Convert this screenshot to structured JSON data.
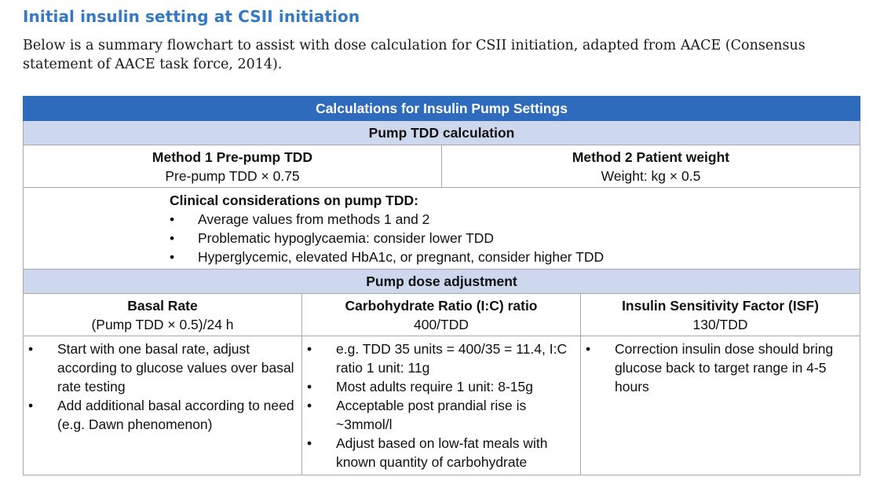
{
  "heading": "Initial insulin setting at CSII initiation",
  "intro": "Below is a summary flowchart to assist with dose calculation for CSII initiation, adapted from AACE (Consensus statement of AACE task force, 2014).",
  "table": {
    "title": "Calculations for Insulin Pump Settings",
    "tdd_header": "Pump TDD calculation",
    "method1": {
      "label": "Method 1 Pre-pump TDD",
      "formula": "Pre-pump TDD × 0.75"
    },
    "method2": {
      "label": "Method 2 Patient weight",
      "formula": "Weight: kg × 0.5"
    },
    "clinical": {
      "label": "Clinical considerations on pump TDD:",
      "items": [
        "Average values from methods 1 and 2",
        "Problematic hypoglycaemia: consider lower TDD",
        "Hyperglycemic, elevated HbA1c, or pregnant, consider higher TDD"
      ]
    },
    "dose_header": "Pump dose adjustment",
    "basal": {
      "label": "Basal Rate",
      "formula": "(Pump TDD × 0.5)/24 h",
      "items": [
        "Start with one basal rate, adjust according to glucose values over basal rate testing",
        "Add additional basal according to need (e.g. Dawn phenomenon)"
      ]
    },
    "carb": {
      "label": "Carbohydrate Ratio (I:C) ratio",
      "formula": "400/TDD",
      "items": [
        "e.g. TDD 35 units = 400/35 = 11.4, I:C ratio 1 unit: 11g",
        "Most adults require 1 unit: 8-15g",
        "Acceptable post prandial rise is ~3mmol/l",
        "Adjust based on low-fat meals with known quantity of carbohydrate"
      ]
    },
    "isf": {
      "label": "Insulin Sensitivity Factor (ISF)",
      "formula": "130/TDD",
      "items": [
        "Correction insulin dose should bring glucose back to target range in 4-5 hours"
      ]
    },
    "bullet": "•"
  }
}
